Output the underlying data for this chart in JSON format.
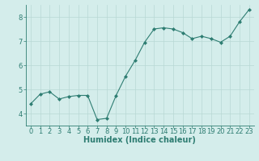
{
  "x": [
    0,
    1,
    2,
    3,
    4,
    5,
    6,
    7,
    8,
    9,
    10,
    11,
    12,
    13,
    14,
    15,
    16,
    17,
    18,
    19,
    20,
    21,
    22,
    23
  ],
  "y": [
    4.4,
    4.8,
    4.9,
    4.6,
    4.7,
    4.75,
    4.75,
    3.75,
    3.8,
    4.75,
    5.55,
    6.2,
    6.95,
    7.5,
    7.55,
    7.5,
    7.35,
    7.1,
    7.2,
    7.1,
    6.95,
    7.2,
    7.8,
    8.3
  ],
  "line_color": "#2e7d72",
  "marker": "D",
  "marker_size": 2,
  "xlabel": "Humidex (Indice chaleur)",
  "xlim": [
    -0.5,
    23.5
  ],
  "ylim": [
    3.5,
    8.5
  ],
  "yticks": [
    4,
    5,
    6,
    7,
    8
  ],
  "xticks": [
    0,
    1,
    2,
    3,
    4,
    5,
    6,
    7,
    8,
    9,
    10,
    11,
    12,
    13,
    14,
    15,
    16,
    17,
    18,
    19,
    20,
    21,
    22,
    23
  ],
  "background_color": "#d4edeb",
  "grid_color": "#b8d8d5",
  "tick_color": "#2e7d72",
  "label_color": "#2e7d72",
  "font_size": 6,
  "xlabel_fontsize": 7
}
